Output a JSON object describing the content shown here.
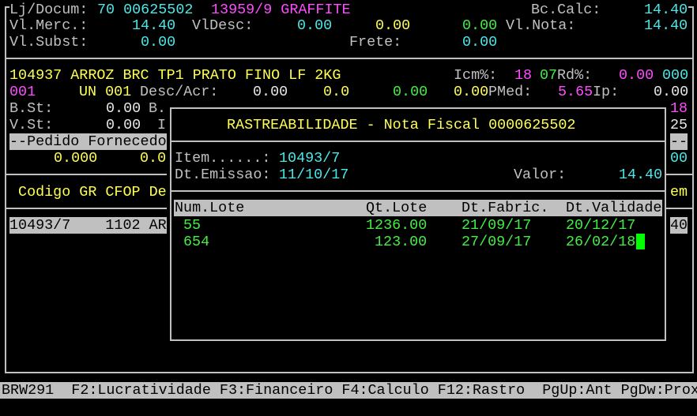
{
  "header": {
    "lj_docum_label": "Lj/Docum:",
    "lj_docum_value": "70 00625502",
    "supplier": "13959/9 GRAFFITE",
    "bc_calc_label": "Bc.Calc:",
    "bc_calc_value": "14.40",
    "vl_merc_label": "Vl.Merc.:",
    "vl_merc_value": "14.40",
    "vl_desc_label": "VlDesc:",
    "vl_desc_value1": "0.00",
    "vl_desc_value2": "0.00",
    "vl_desc_value3": "0.00",
    "vl_nota_label": "Vl.Nota:",
    "vl_nota_value": "14.40",
    "vl_subst_label": "Vl.Subst:",
    "vl_subst_value": "0.00",
    "frete_label": "Frete:",
    "frete_value": "0.00"
  },
  "item": {
    "description": "104937 ARROZ BRC TP1 PRATO FINO LF 2KG",
    "icm_label": "Icm%:",
    "icm_value": "18",
    "icm_code": "07",
    "rd_label": "Rd%:",
    "rd_value": "0.00",
    "rd_code": "000",
    "code": "001",
    "unit": "UN 001",
    "desc_acr_label": "Desc/Acr:",
    "desc_acr_v1": "0.00",
    "desc_acr_v2": "0.0",
    "desc_acr_v3": "0.00",
    "desc_acr_v4": "0.00",
    "pmed_label": "PMed:",
    "pmed_value": "5.65",
    "ip_label": "Ip:",
    "ip_value": "0.00",
    "bst_label": "B.St:",
    "bst_value": "0.00",
    "bst_trail": "B.",
    "vst_label": "V.St:",
    "vst_value": "0.00",
    "vst_trail": "I",
    "pedido_header": "--Pedido Fornecedo",
    "pedido_v1": "0.000",
    "pedido_v2": "0.0",
    "grid_header": " Codigo GR CFOP De",
    "grid_row": "10493/7    1102 AR",
    "right_col": [
      "18",
      "25",
      "--",
      "00",
      "em",
      "40"
    ]
  },
  "modal": {
    "title": "RASTREABILIDADE - Nota Fiscal 0000625502",
    "item_label": "Item......:",
    "item_value": "10493/7",
    "dt_emissao_label": "Dt.Emissao:",
    "dt_emissao_value": "11/10/17",
    "valor_label": "Valor:",
    "valor_value": "14.40",
    "columns": [
      "Num.Lote",
      "Qt.Lote",
      "Dt.Fabric.",
      "Dt.Validade"
    ],
    "rows": [
      [
        "55",
        "1236.00",
        "21/09/17",
        "20/12/17"
      ],
      [
        "654",
        "123.00",
        "27/09/17",
        "26/02/18"
      ]
    ]
  },
  "status_bar": "BRW291  F2:Lucratividade F3:Financeiro F4:Calculo F12:Rastro  PgUp:Ant PgDw:Prox"
}
